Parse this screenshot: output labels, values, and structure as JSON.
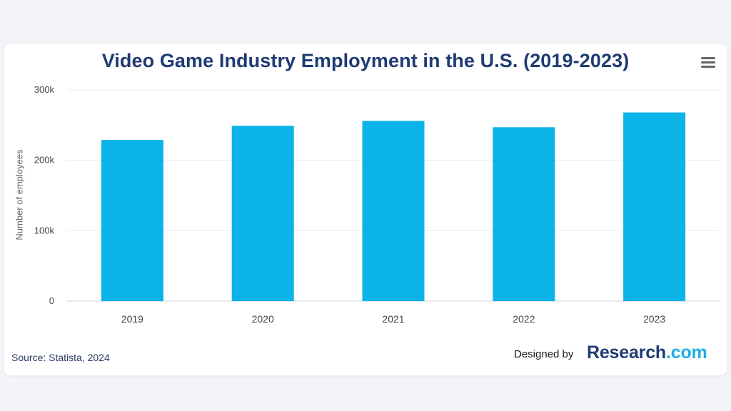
{
  "chart_data": {
    "type": "bar",
    "title": "Video Game Industry Employment in the U.S. (2019-2023)",
    "xlabel": "",
    "ylabel": "Number of employees",
    "categories": [
      "2019",
      "2020",
      "2021",
      "2022",
      "2023"
    ],
    "values": [
      229000,
      249000,
      256000,
      247000,
      268000
    ],
    "ylim": [
      0,
      300000
    ],
    "yticks": [
      0,
      100000,
      200000,
      300000
    ],
    "ytick_labels": [
      "0",
      "100k",
      "200k",
      "300k"
    ],
    "bar_color": "#0cb3e8",
    "grid": true,
    "legend": "none"
  },
  "footer": {
    "source": "Source: Statista, 2024",
    "designed_by": "Designed by",
    "brand_main": "Research",
    "brand_dot": ".",
    "brand_tld": "com"
  },
  "icons": {
    "menu": "hamburger-menu-icon"
  },
  "colors": {
    "title": "#1f3b73",
    "accent": "#1eaee6"
  }
}
